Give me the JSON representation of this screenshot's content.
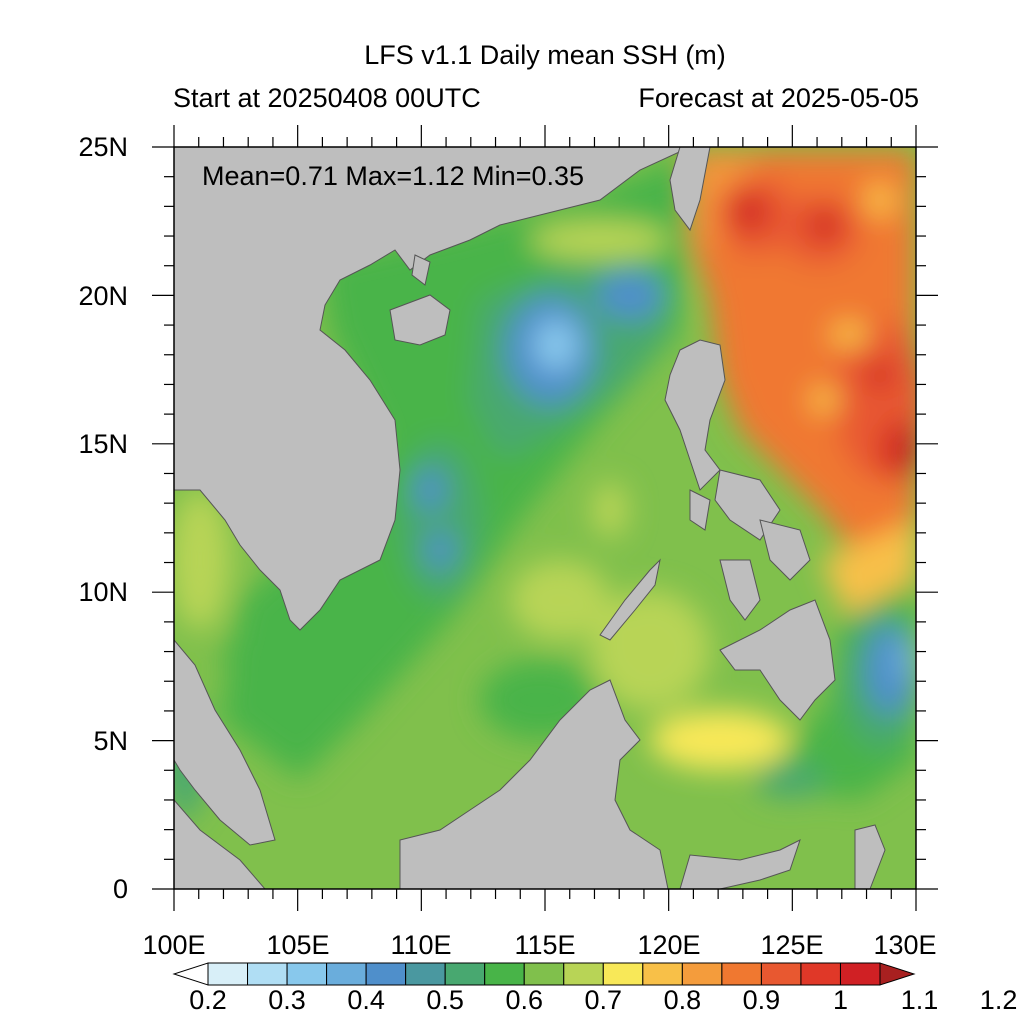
{
  "title": "LFS v1.1 Daily mean SSH (m)",
  "subtitle_left": "Start at 20250408 00UTC",
  "subtitle_right": "Forecast at 2025-05-05",
  "stats": "Mean=0.71  Max=1.12  Min=0.35",
  "y_ticks": [
    "25N",
    "20N",
    "15N",
    "10N",
    "5N",
    "0"
  ],
  "x_ticks": [
    "100E",
    "105E",
    "110E",
    "115E",
    "120E",
    "125E",
    "130E"
  ],
  "colorbar": {
    "labels": [
      "0.2",
      "0.3",
      "0.4",
      "0.5",
      "0.6",
      "0.7",
      "0.8",
      "0.9",
      "1",
      "1.1",
      "1.2"
    ],
    "colors": [
      "#ffffff",
      "#d8eff8",
      "#b0def4",
      "#88c8ec",
      "#6aaddc",
      "#4f8fcb",
      "#4a98a0",
      "#48a870",
      "#48b448",
      "#80c04c",
      "#b8d456",
      "#f8e858",
      "#f8c048",
      "#f49c3c",
      "#f07830",
      "#e85830",
      "#e03828",
      "#d02024",
      "#a82020"
    ],
    "range": [
      0.2,
      1.2
    ]
  },
  "map": {
    "lon_range": [
      100,
      130
    ],
    "lat_range": [
      0,
      25
    ],
    "land_color": "#bebebe",
    "ocean_base_color": "#80c04c"
  }
}
